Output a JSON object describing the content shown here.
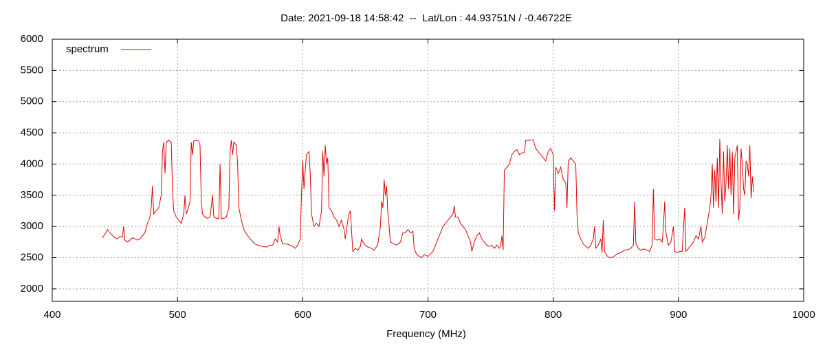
{
  "chart_data": {
    "type": "line",
    "title": "Date: 2021-09-18 14:58:42  --  Lat/Lon : 44.93751N / -0.46722E",
    "xlabel": "Frequency (MHz)",
    "xlim": [
      400,
      1000
    ],
    "xticks": [
      400,
      500,
      600,
      700,
      800,
      900,
      1000
    ],
    "ylim": [
      1800,
      6000
    ],
    "yticks": [
      2000,
      2500,
      3000,
      3500,
      4000,
      4500,
      5000,
      5500,
      6000
    ],
    "grid": true,
    "legend": "top-left",
    "x": [
      440,
      442,
      444,
      446,
      448,
      450,
      452,
      454,
      456,
      457,
      458,
      460,
      462,
      464,
      466,
      468,
      470,
      472,
      474,
      476,
      478,
      479,
      480,
      481,
      483,
      485,
      487,
      488,
      489,
      490,
      491,
      493,
      495,
      496,
      497,
      499,
      501,
      503,
      505,
      506,
      507,
      508,
      510,
      511,
      512,
      513,
      515,
      517,
      518,
      519,
      520,
      522,
      524,
      526,
      528,
      529,
      531,
      533,
      534,
      535,
      537,
      539,
      541,
      542,
      543,
      544,
      545,
      547,
      548,
      549,
      551,
      553,
      556,
      559,
      562,
      565,
      568,
      571,
      574,
      576,
      578,
      580,
      581,
      582,
      584,
      587,
      590,
      592,
      594,
      596,
      598,
      599,
      600,
      601,
      602,
      603,
      605,
      606,
      607,
      609,
      611,
      613,
      615,
      616,
      617,
      618,
      619,
      620,
      621,
      623,
      625,
      627,
      629,
      631,
      633,
      634,
      636,
      637,
      638,
      640,
      642,
      644,
      646,
      647,
      648,
      650,
      652,
      655,
      657,
      659,
      660,
      662,
      663,
      664,
      665,
      666,
      667,
      668,
      669,
      670,
      672,
      675,
      678,
      680,
      682,
      684,
      686,
      688,
      689,
      691,
      693,
      695,
      697,
      700,
      702,
      704,
      706,
      708,
      710,
      712,
      714,
      716,
      718,
      720,
      721,
      722,
      724,
      726,
      728,
      730,
      732,
      734,
      735,
      737,
      739,
      741,
      743,
      745,
      747,
      749,
      751,
      753,
      755,
      757,
      758,
      759,
      760,
      761,
      763,
      765,
      767,
      769,
      771,
      773,
      775,
      777,
      778,
      781,
      784,
      786,
      788,
      790,
      792,
      794,
      796,
      798,
      800,
      801,
      802,
      804,
      806,
      808,
      810,
      811,
      812,
      814,
      816,
      818,
      819,
      820,
      822,
      824,
      826,
      828,
      830,
      832,
      833,
      834,
      836,
      838,
      839,
      840,
      841,
      843,
      845,
      848,
      851,
      854,
      857,
      860,
      862,
      864,
      865,
      866,
      868,
      870,
      872,
      875,
      877,
      879,
      880,
      881,
      883,
      885,
      887,
      888,
      889,
      890,
      892,
      894,
      896,
      897,
      899,
      901,
      903,
      905,
      906,
      908,
      910,
      912,
      914,
      916,
      918,
      919,
      921,
      923,
      925,
      926,
      927,
      928,
      929,
      930,
      931,
      932,
      933,
      934,
      935,
      936,
      937,
      938,
      939,
      940,
      941,
      942,
      943,
      944,
      945,
      946,
      947,
      948,
      949,
      950,
      951,
      952,
      953,
      954,
      955,
      956,
      957,
      958,
      959,
      960
    ],
    "series": [
      {
        "name": "spectrum",
        "color": "#e00000",
        "values": [
          2820,
          2870,
          2950,
          2900,
          2860,
          2820,
          2800,
          2840,
          2830,
          3000,
          2780,
          2750,
          2780,
          2820,
          2800,
          2780,
          2800,
          2850,
          2900,
          3050,
          3150,
          3300,
          3650,
          3200,
          3250,
          3300,
          3500,
          4200,
          4350,
          3850,
          4350,
          4380,
          4350,
          3600,
          3250,
          3150,
          3100,
          3050,
          3200,
          3500,
          3200,
          3250,
          3400,
          4350,
          4150,
          4370,
          4380,
          4370,
          4300,
          3400,
          3200,
          3150,
          3130,
          3150,
          3500,
          3150,
          3130,
          3130,
          4000,
          3130,
          3130,
          3150,
          3300,
          4200,
          4380,
          4150,
          4350,
          4300,
          4000,
          3300,
          3100,
          2950,
          2850,
          2780,
          2720,
          2690,
          2680,
          2670,
          2700,
          2700,
          2800,
          2750,
          3000,
          2850,
          2720,
          2720,
          2700,
          2680,
          2650,
          2700,
          2800,
          3500,
          4050,
          3600,
          3900,
          4150,
          4200,
          3850,
          3200,
          3000,
          3050,
          3000,
          3250,
          4200,
          3800,
          4300,
          4000,
          4100,
          3300,
          3250,
          3150,
          3100,
          3000,
          3100,
          2950,
          2800,
          3100,
          3200,
          3250,
          2600,
          2650,
          2620,
          2680,
          2800,
          2750,
          2700,
          2670,
          2650,
          2620,
          2680,
          2720,
          3000,
          3400,
          3300,
          3750,
          3500,
          3650,
          3200,
          3000,
          2750,
          2730,
          2700,
          2750,
          2900,
          2900,
          2950,
          2900,
          2920,
          2650,
          2550,
          2520,
          2500,
          2550,
          2520,
          2560,
          2600,
          2700,
          2800,
          2900,
          3000,
          3050,
          3100,
          3150,
          3200,
          3330,
          3150,
          3150,
          3050,
          3000,
          2950,
          2850,
          2750,
          2600,
          2750,
          2850,
          2900,
          2800,
          2750,
          2700,
          2680,
          2700,
          2650,
          2700,
          2650,
          2680,
          2850,
          2620,
          3900,
          3950,
          4000,
          4150,
          4200,
          4230,
          4150,
          4180,
          4180,
          4380,
          4380,
          4390,
          4250,
          4200,
          4150,
          4100,
          4050,
          4200,
          4250,
          4150,
          3250,
          3950,
          3850,
          3950,
          3750,
          3700,
          3300,
          4050,
          4100,
          4050,
          4000,
          3200,
          2900,
          2800,
          2720,
          2680,
          2650,
          2700,
          2800,
          3000,
          2650,
          2700,
          2800,
          2580,
          3100,
          2600,
          2530,
          2500,
          2510,
          2560,
          2580,
          2620,
          2630,
          2650,
          2700,
          3400,
          2720,
          2650,
          2620,
          2640,
          2620,
          2600,
          2700,
          3600,
          2800,
          2780,
          2800,
          2750,
          3000,
          3400,
          2900,
          2700,
          2750,
          3000,
          2600,
          2580,
          2600,
          2600,
          3300,
          2600,
          2650,
          2700,
          2750,
          2850,
          2800,
          3000,
          2750,
          2820,
          3050,
          3300,
          3500,
          4000,
          3300,
          3900,
          3400,
          4100,
          3300,
          4400,
          3700,
          3200,
          4200,
          3400,
          3700,
          4300,
          3600,
          4250,
          3500,
          4200,
          3200,
          4100,
          4200,
          4300,
          3100,
          3300,
          4250,
          4000,
          3600,
          3500,
          4050,
          4000,
          3800,
          4300,
          3450,
          3800,
          3550
        ]
      }
    ]
  }
}
